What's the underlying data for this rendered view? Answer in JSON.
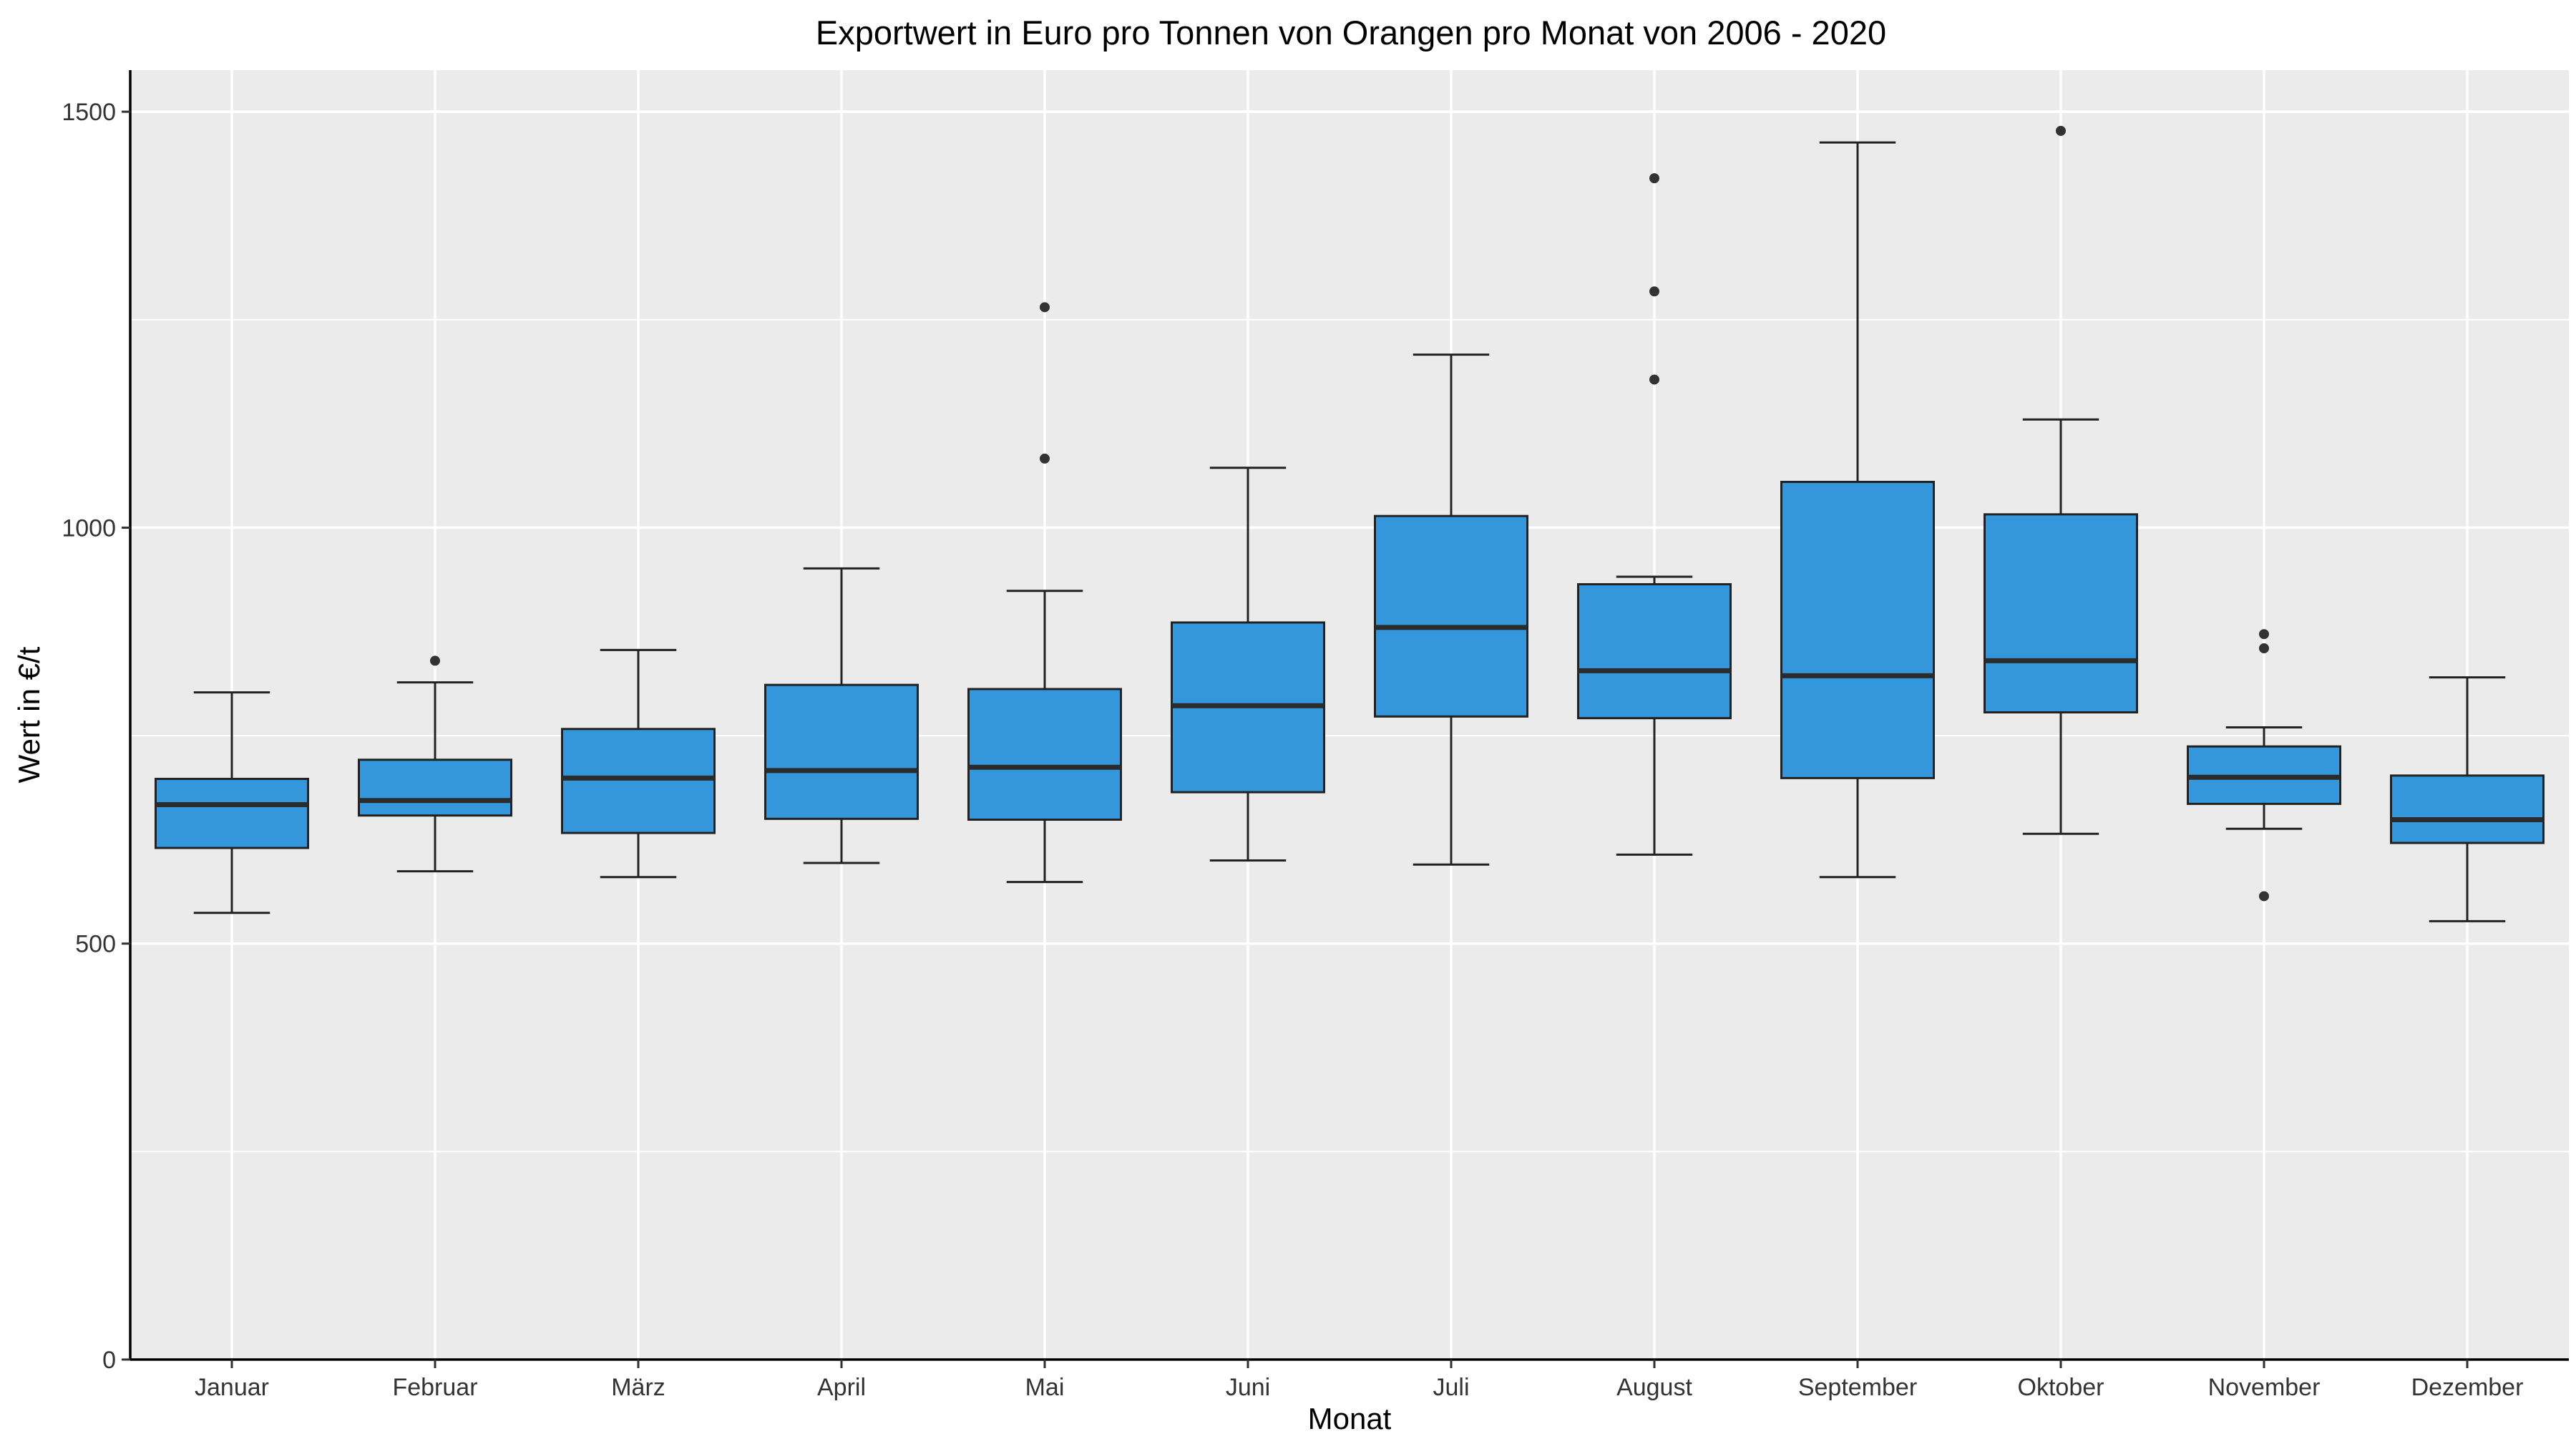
{
  "chart_data": {
    "type": "boxplot",
    "title": "Exportwert in Euro pro Tonnen von Orangen pro Monat von 2006 - 2020",
    "xlabel": "Monat",
    "ylabel": "Wert in €/t",
    "ylim": [
      0,
      1550
    ],
    "yticks": [
      0,
      500,
      1000,
      1500
    ],
    "grid": true,
    "legend": "none",
    "colors": {
      "box_fill": "#3497db",
      "panel_bg": "#ebebeb",
      "grid": "#ffffff",
      "stroke": "#222222"
    },
    "categories": [
      "Januar",
      "Februar",
      "März",
      "April",
      "Mai",
      "Juni",
      "Juli",
      "August",
      "September",
      "Oktober",
      "November",
      "Dezember"
    ],
    "boxes": [
      {
        "min": 537,
        "q1": 615,
        "median": 667,
        "q3": 698,
        "max": 802,
        "outliers": []
      },
      {
        "min": 587,
        "q1": 654,
        "median": 672,
        "q3": 721,
        "max": 814,
        "outliers": [
          840
        ]
      },
      {
        "min": 580,
        "q1": 633,
        "median": 699,
        "q3": 758,
        "max": 853,
        "outliers": []
      },
      {
        "min": 597,
        "q1": 650,
        "median": 708,
        "q3": 811,
        "max": 951,
        "outliers": []
      },
      {
        "min": 574,
        "q1": 649,
        "median": 712,
        "q3": 806,
        "max": 924,
        "outliers": [
          1083,
          1265
        ]
      },
      {
        "min": 600,
        "q1": 682,
        "median": 786,
        "q3": 886,
        "max": 1072,
        "outliers": []
      },
      {
        "min": 595,
        "q1": 773,
        "median": 880,
        "q3": 1014,
        "max": 1208,
        "outliers": []
      },
      {
        "min": 607,
        "q1": 771,
        "median": 828,
        "q3": 932,
        "max": 941,
        "outliers": [
          1178,
          1284,
          1420
        ]
      },
      {
        "min": 580,
        "q1": 699,
        "median": 822,
        "q3": 1055,
        "max": 1463,
        "outliers": []
      },
      {
        "min": 632,
        "q1": 778,
        "median": 840,
        "q3": 1016,
        "max": 1130,
        "outliers": [
          1477
        ]
      },
      {
        "min": 638,
        "q1": 668,
        "median": 700,
        "q3": 737,
        "max": 760,
        "outliers": [
          557,
          855,
          872
        ]
      },
      {
        "min": 527,
        "q1": 621,
        "median": 649,
        "q3": 702,
        "max": 820,
        "outliers": []
      }
    ]
  }
}
